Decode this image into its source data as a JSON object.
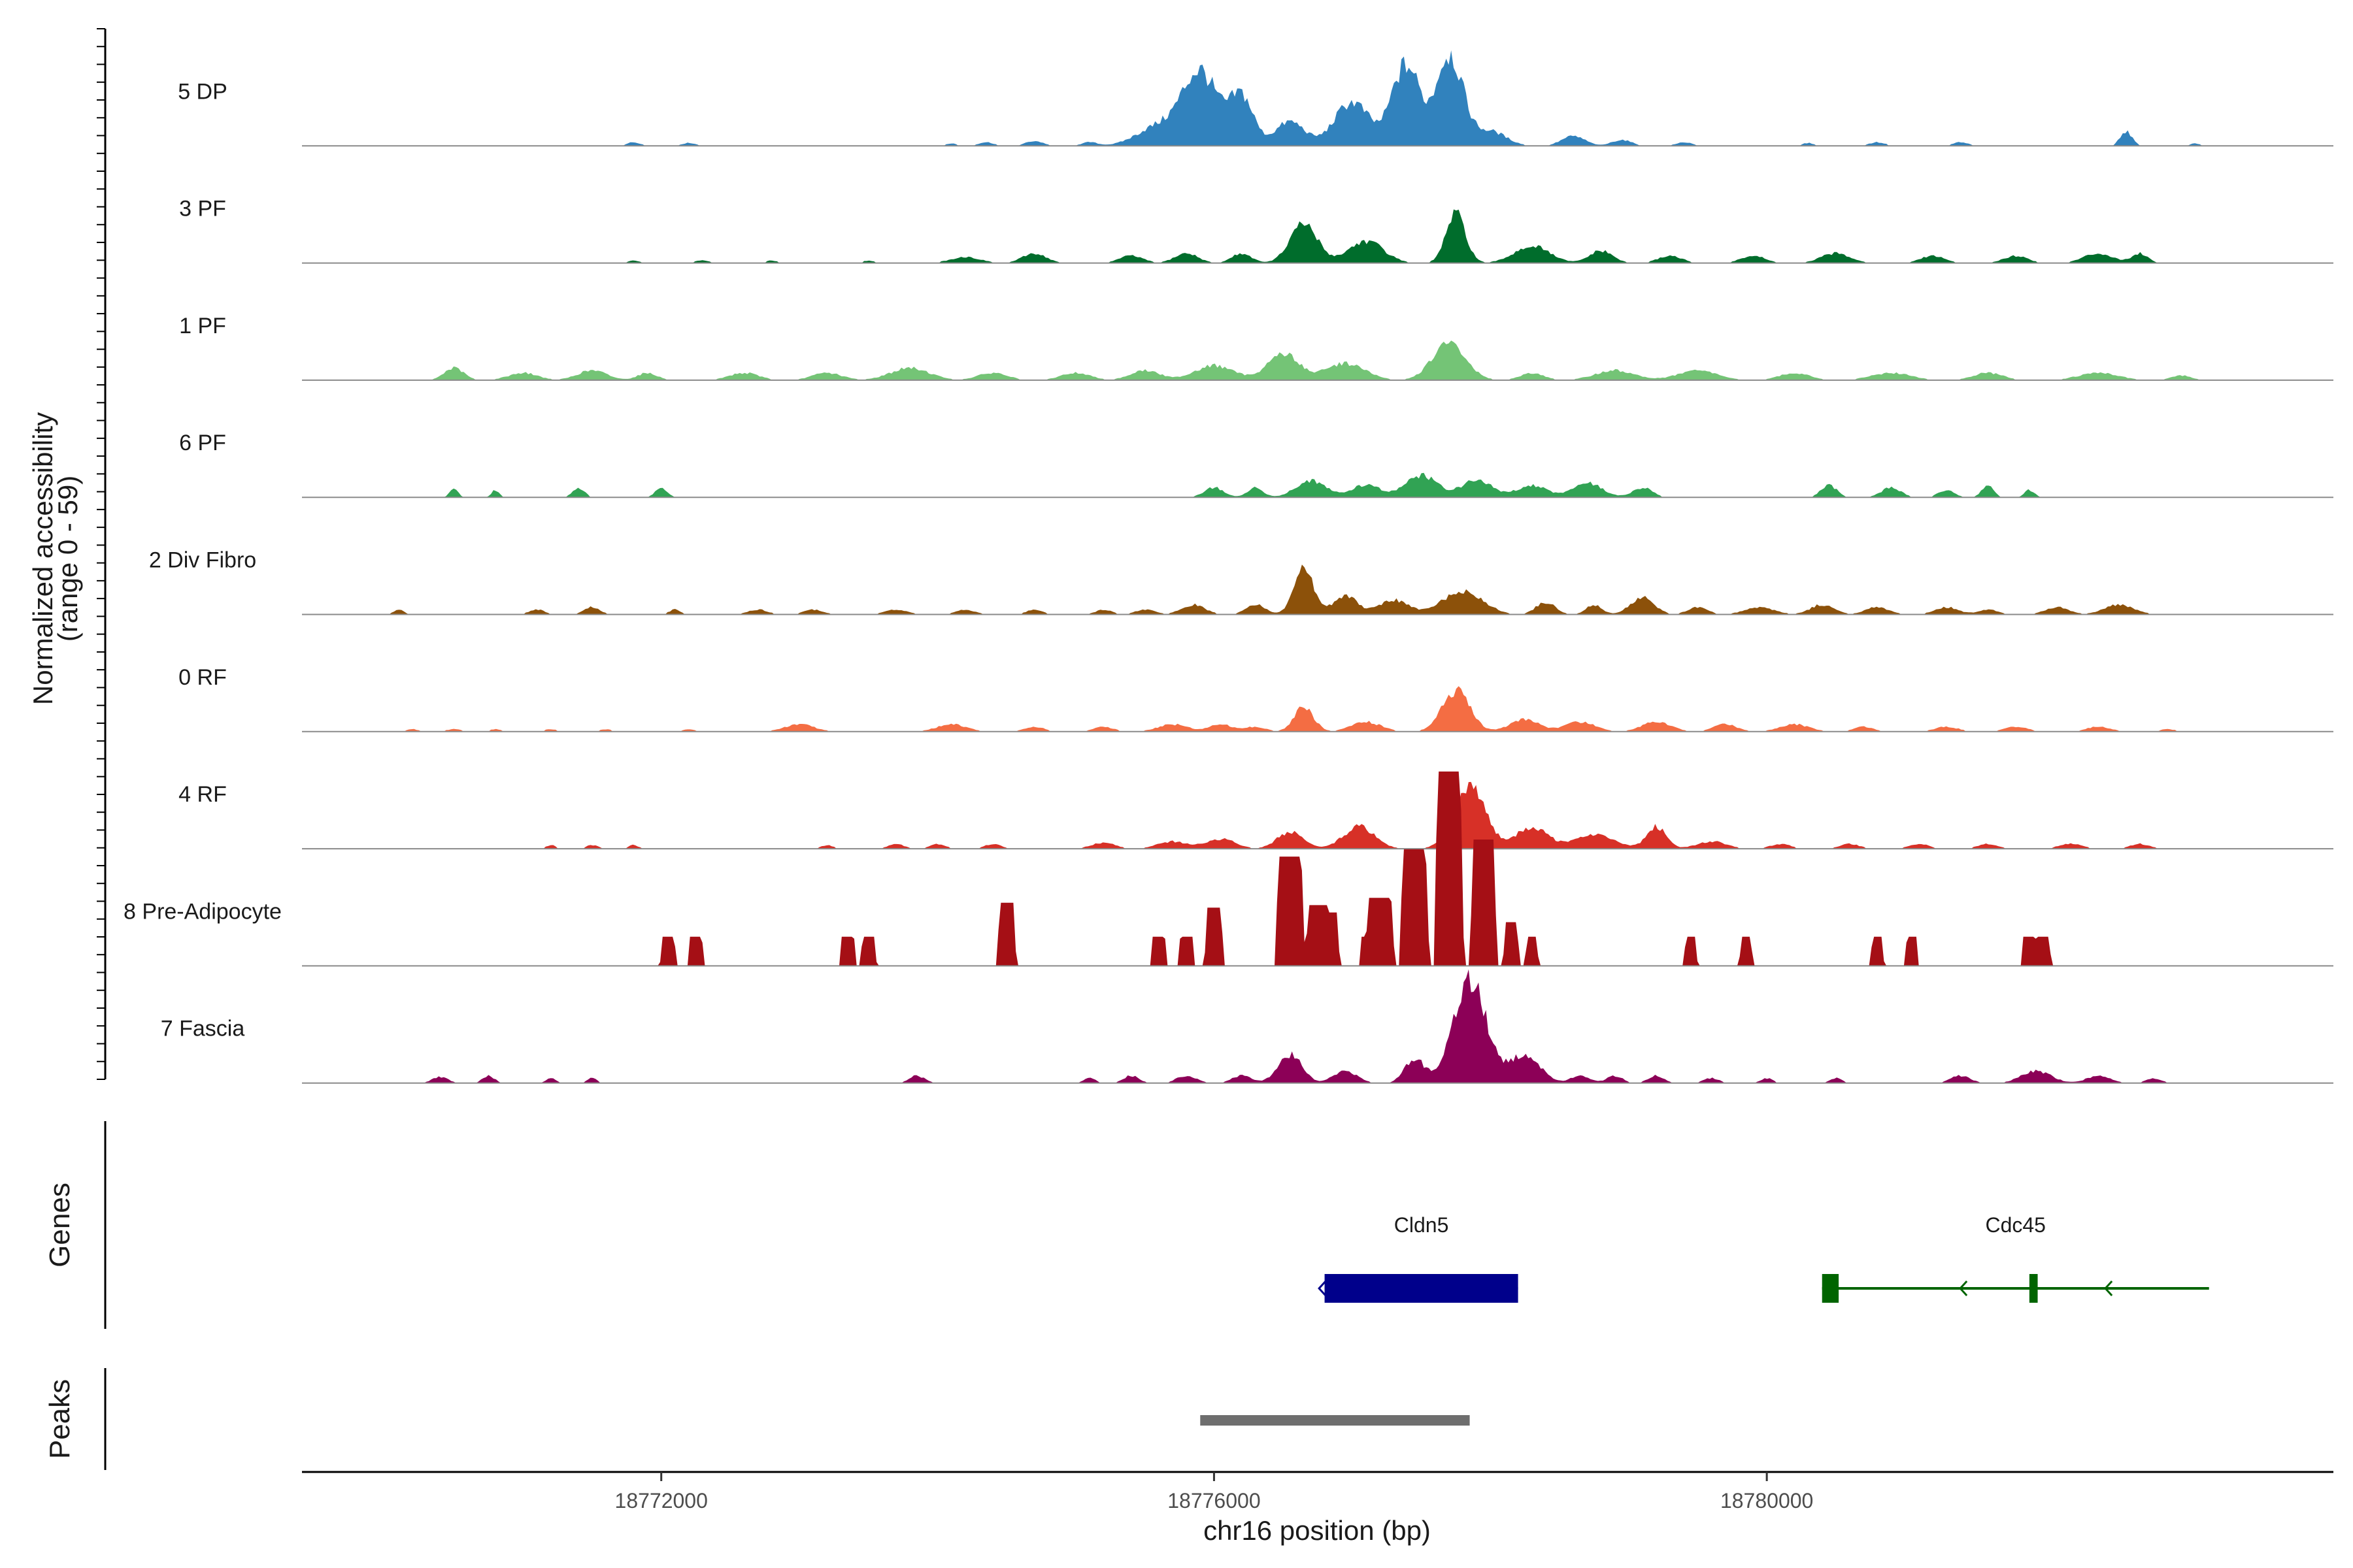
{
  "chart_data": {
    "type": "area",
    "title": "",
    "ylabel": "Normalized accessibility",
    "ylabel_range": "(range 0 - 59)",
    "ylim": [
      0,
      59
    ],
    "xlabel": "chr16 position (bp)",
    "xlim": [
      18769400,
      18784100
    ],
    "x_ticks": [
      18772000,
      18776000,
      18780000
    ],
    "x_tick_labels": [
      "18772000",
      "18776000",
      "18780000"
    ],
    "genes_panel_label": "Genes",
    "peaks_panel_label": "Peaks",
    "tracks": [
      {
        "name": "5 DP",
        "color": "#3182bd",
        "mode": "smooth",
        "base": 0.4,
        "peaks": [
          [
            18771800,
            1.5,
            70
          ],
          [
            18772200,
            1.2,
            70
          ],
          [
            18774100,
            1,
            60
          ],
          [
            18774350,
            1.5,
            80
          ],
          [
            18774700,
            2,
            90
          ],
          [
            18775100,
            1.5,
            80
          ],
          [
            18775900,
            30,
            180
          ],
          [
            18775600,
            8,
            220
          ],
          [
            18776200,
            20,
            120
          ],
          [
            18776550,
            10,
            150
          ],
          [
            18777000,
            18,
            180
          ],
          [
            18777350,
            25,
            120
          ],
          [
            18777700,
            38,
            140
          ],
          [
            18777450,
            15,
            100
          ],
          [
            18778000,
            6,
            160
          ],
          [
            18778600,
            4,
            120
          ],
          [
            18778950,
            2.5,
            100
          ],
          [
            18779400,
            1.5,
            80
          ],
          [
            18780300,
            1.2,
            60
          ],
          [
            18780800,
            1.5,
            80
          ],
          [
            18781400,
            1.5,
            80
          ],
          [
            18782600,
            6,
            60
          ],
          [
            18783100,
            1,
            50
          ]
        ]
      },
      {
        "name": "3 PF",
        "color": "#006d2c",
        "mode": "smooth",
        "base": 0.5,
        "peaks": [
          [
            18771800,
            1,
            60
          ],
          [
            18772300,
            1.2,
            70
          ],
          [
            18772800,
            1,
            60
          ],
          [
            18773500,
            1,
            60
          ],
          [
            18774200,
            2.5,
            150
          ],
          [
            18774700,
            4,
            120
          ],
          [
            18775400,
            3,
            120
          ],
          [
            18775800,
            4,
            120
          ],
          [
            18776200,
            4,
            100
          ],
          [
            18776650,
            16,
            140
          ],
          [
            18777100,
            9,
            180
          ],
          [
            18777750,
            20,
            100
          ],
          [
            18778300,
            7,
            180
          ],
          [
            18778800,
            5,
            120
          ],
          [
            18779300,
            3,
            120
          ],
          [
            18779900,
            3,
            120
          ],
          [
            18780500,
            4,
            150
          ],
          [
            18781200,
            3,
            120
          ],
          [
            18781800,
            3,
            120
          ],
          [
            18782400,
            4,
            150
          ],
          [
            18782700,
            4,
            80
          ]
        ]
      },
      {
        "name": "1 PF",
        "color": "#74c476",
        "mode": "smooth",
        "base": 0.8,
        "peaks": [
          [
            18770500,
            5,
            100
          ],
          [
            18771000,
            3,
            150
          ],
          [
            18771500,
            4,
            150
          ],
          [
            18771900,
            3,
            100
          ],
          [
            18772600,
            3,
            150
          ],
          [
            18773200,
            3,
            150
          ],
          [
            18773800,
            5,
            200
          ],
          [
            18774400,
            3,
            150
          ],
          [
            18775000,
            3,
            150
          ],
          [
            18775500,
            4,
            150
          ],
          [
            18776000,
            6,
            200
          ],
          [
            18776500,
            11,
            160
          ],
          [
            18776950,
            7,
            200
          ],
          [
            18777700,
            15,
            170
          ],
          [
            18778300,
            3,
            120
          ],
          [
            18778900,
            4,
            200
          ],
          [
            18779500,
            4,
            200
          ],
          [
            18780200,
            3,
            150
          ],
          [
            18780900,
            3,
            200
          ],
          [
            18781600,
            3,
            150
          ],
          [
            18782400,
            3,
            200
          ],
          [
            18783000,
            2,
            100
          ]
        ]
      },
      {
        "name": "6 PF",
        "color": "#31a354",
        "mode": "smooth",
        "base": 0,
        "peaks": [
          [
            18770500,
            4,
            40
          ],
          [
            18770800,
            3,
            40
          ],
          [
            18771400,
            4,
            60
          ],
          [
            18772000,
            4,
            60
          ],
          [
            18776000,
            4,
            100
          ],
          [
            18776300,
            4,
            80
          ],
          [
            18776700,
            7,
            150
          ],
          [
            18777100,
            5,
            150
          ],
          [
            18777500,
            9,
            160
          ],
          [
            18777900,
            7,
            160
          ],
          [
            18778300,
            5,
            150
          ],
          [
            18778700,
            6,
            150
          ],
          [
            18779100,
            4,
            100
          ],
          [
            18780450,
            5,
            80
          ],
          [
            18780900,
            4,
            100
          ],
          [
            18781300,
            3,
            80
          ],
          [
            18781600,
            5,
            60
          ],
          [
            18781900,
            3,
            50
          ]
        ]
      },
      {
        "name": "2 Div Fibro",
        "color": "#8c510a",
        "mode": "smooth",
        "base": 0,
        "peaks": [
          [
            18770100,
            2,
            50
          ],
          [
            18771100,
            2,
            80
          ],
          [
            18771500,
            3,
            80
          ],
          [
            18772100,
            2,
            60
          ],
          [
            18772700,
            2,
            100
          ],
          [
            18773100,
            2,
            100
          ],
          [
            18773700,
            2,
            120
          ],
          [
            18774200,
            2,
            100
          ],
          [
            18774700,
            2,
            80
          ],
          [
            18775200,
            2,
            80
          ],
          [
            18775500,
            2,
            100
          ],
          [
            18775850,
            4,
            120
          ],
          [
            18776300,
            4,
            100
          ],
          [
            18776650,
            19,
            100
          ],
          [
            18776950,
            8,
            120
          ],
          [
            18777300,
            6,
            150
          ],
          [
            18777800,
            10,
            200
          ],
          [
            18778400,
            5,
            100
          ],
          [
            18778750,
            4,
            80
          ],
          [
            18779100,
            7,
            120
          ],
          [
            18779500,
            3,
            100
          ],
          [
            18779950,
            3,
            150
          ],
          [
            18780400,
            4,
            120
          ],
          [
            18780800,
            3,
            120
          ],
          [
            18781300,
            3,
            120
          ],
          [
            18781600,
            2,
            100
          ],
          [
            18782100,
            3,
            120
          ],
          [
            18782550,
            4,
            150
          ]
        ]
      },
      {
        "name": "0 RF",
        "color": "#f46d43",
        "mode": "smooth",
        "base": 0,
        "peaks": [
          [
            18770200,
            1,
            60
          ],
          [
            18770500,
            1,
            80
          ],
          [
            18770800,
            1,
            60
          ],
          [
            18771200,
            1,
            60
          ],
          [
            18771600,
            1,
            60
          ],
          [
            18772200,
            1,
            60
          ],
          [
            18773000,
            3,
            150
          ],
          [
            18774100,
            3,
            150
          ],
          [
            18774700,
            2,
            100
          ],
          [
            18775200,
            2,
            100
          ],
          [
            18775700,
            3,
            150
          ],
          [
            18776050,
            3,
            120
          ],
          [
            18776300,
            2,
            100
          ],
          [
            18776650,
            10,
            100
          ],
          [
            18777100,
            4,
            150
          ],
          [
            18777750,
            17,
            140
          ],
          [
            18778250,
            5,
            150
          ],
          [
            18778650,
            4,
            150
          ],
          [
            18779200,
            4,
            150
          ],
          [
            18779700,
            3,
            120
          ],
          [
            18780200,
            3,
            150
          ],
          [
            18780700,
            2,
            100
          ],
          [
            18781300,
            2,
            120
          ],
          [
            18781800,
            2,
            120
          ],
          [
            18782400,
            2,
            120
          ],
          [
            18782900,
            1,
            80
          ]
        ]
      },
      {
        "name": "4 RF",
        "color": "#d73027",
        "mode": "smooth",
        "base": 0,
        "peaks": [
          [
            18771200,
            1.5,
            50
          ],
          [
            18771500,
            1.5,
            60
          ],
          [
            18771800,
            1.5,
            50
          ],
          [
            18773200,
            1.5,
            60
          ],
          [
            18773700,
            2,
            80
          ],
          [
            18774000,
            2,
            80
          ],
          [
            18774400,
            2,
            80
          ],
          [
            18775200,
            2.5,
            120
          ],
          [
            18775700,
            3,
            150
          ],
          [
            18776050,
            4,
            150
          ],
          [
            18776550,
            7,
            130
          ],
          [
            18777050,
            9,
            160
          ],
          [
            18777850,
            26,
            160
          ],
          [
            18778300,
            9,
            160
          ],
          [
            18778750,
            6,
            200
          ],
          [
            18779200,
            9,
            100
          ],
          [
            18779600,
            3,
            150
          ],
          [
            18780100,
            2,
            100
          ],
          [
            18780600,
            2,
            100
          ],
          [
            18781100,
            2,
            100
          ],
          [
            18781600,
            2,
            100
          ],
          [
            18782200,
            2,
            120
          ],
          [
            18782700,
            2,
            100
          ]
        ]
      },
      {
        "name": "8 Pre-Adipocyte",
        "color": "#a50f15",
        "mode": "block",
        "base": 0,
        "peaks": [
          [
            18772050,
            12,
            60
          ],
          [
            18772250,
            12,
            60
          ],
          [
            18773350,
            12,
            60
          ],
          [
            18773500,
            12,
            60
          ],
          [
            18774500,
            26,
            70
          ],
          [
            18775600,
            12,
            60
          ],
          [
            18775800,
            12,
            60
          ],
          [
            18776000,
            24,
            70
          ],
          [
            18776550,
            45,
            110
          ],
          [
            18776750,
            25,
            90
          ],
          [
            18776850,
            22,
            60
          ],
          [
            18777100,
            12,
            50
          ],
          [
            18777200,
            28,
            110
          ],
          [
            18777450,
            48,
            110
          ],
          [
            18777700,
            80,
            110
          ],
          [
            18777950,
            52,
            100
          ],
          [
            18778150,
            18,
            60
          ],
          [
            18778300,
            12,
            50
          ],
          [
            18779450,
            12,
            50
          ],
          [
            18779850,
            12,
            50
          ],
          [
            18780800,
            12,
            50
          ],
          [
            18781050,
            12,
            50
          ],
          [
            18781900,
            12,
            60
          ],
          [
            18782000,
            12,
            60
          ]
        ]
      },
      {
        "name": "7 Fascia",
        "color": "#8c0057",
        "mode": "smooth",
        "base": 0,
        "peaks": [
          [
            18770400,
            2.5,
            80
          ],
          [
            18770750,
            3,
            60
          ],
          [
            18771200,
            2,
            50
          ],
          [
            18771500,
            2,
            50
          ],
          [
            18773850,
            3,
            80
          ],
          [
            18775100,
            2,
            60
          ],
          [
            18775400,
            3,
            80
          ],
          [
            18775800,
            3,
            100
          ],
          [
            18776200,
            3,
            100
          ],
          [
            18776550,
            12,
            120
          ],
          [
            18776950,
            5,
            120
          ],
          [
            18777450,
            10,
            100
          ],
          [
            18777850,
            42,
            170
          ],
          [
            18778250,
            12,
            150
          ],
          [
            18778650,
            3,
            100
          ],
          [
            18778900,
            3,
            80
          ],
          [
            18779200,
            3,
            80
          ],
          [
            18779600,
            2,
            80
          ],
          [
            18780000,
            2,
            60
          ],
          [
            18780500,
            2,
            60
          ],
          [
            18781400,
            3,
            100
          ],
          [
            18781950,
            5,
            150
          ],
          [
            18782400,
            3,
            120
          ],
          [
            18782800,
            2,
            80
          ]
        ]
      }
    ],
    "genes": [
      {
        "name": "Cldn5",
        "color": "#00008b",
        "start": 18776800,
        "end": 18778200,
        "strand": "-",
        "exons": [
          [
            18776800,
            18778200
          ]
        ],
        "arrows": [
          18776760
        ]
      },
      {
        "name": "Cdc45",
        "color": "#006400",
        "start": 18780400,
        "end": 18783200,
        "strand": "-",
        "exons": [
          [
            18780400,
            18780520
          ],
          [
            18781900,
            18781960
          ]
        ],
        "arrows": [
          18781400,
          18782450
        ]
      }
    ],
    "peaks": [
      {
        "start": 18775900,
        "end": 18777850,
        "color": "#6e6e6e"
      }
    ]
  }
}
